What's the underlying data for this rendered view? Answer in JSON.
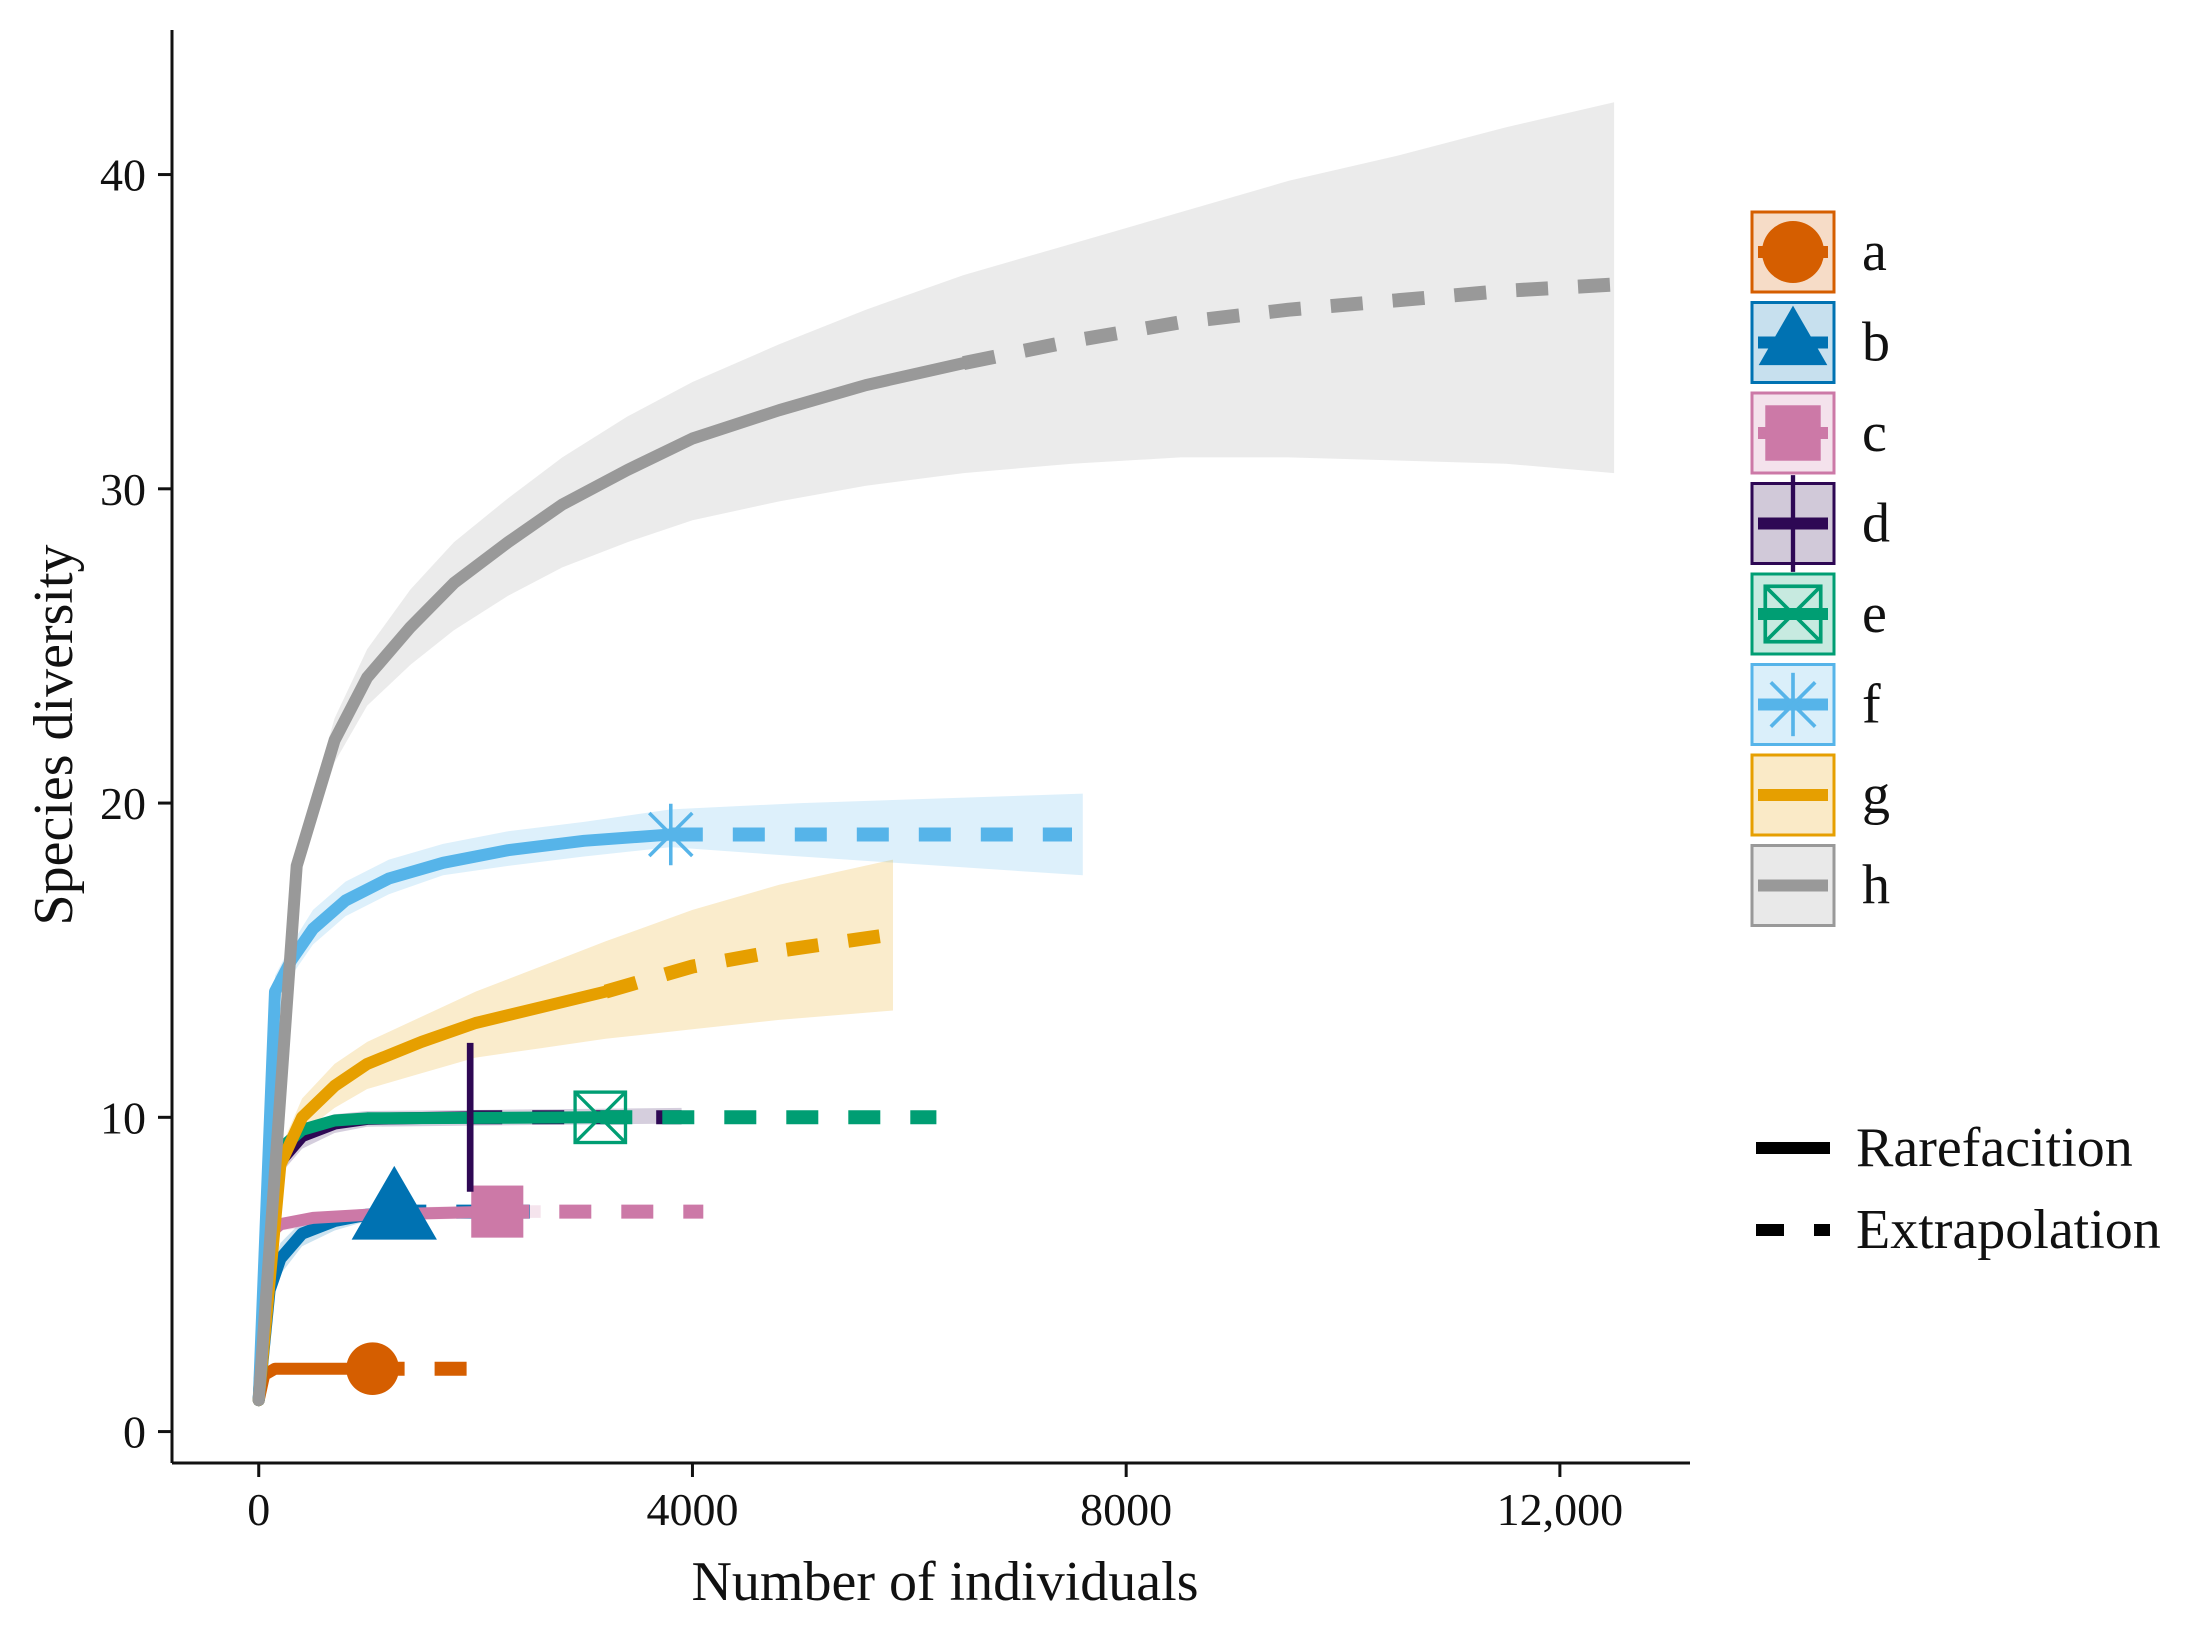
{
  "chart_data": {
    "type": "line",
    "title": "",
    "xlabel": "Number of individuals",
    "ylabel": "Species diversity",
    "xlim": [
      -800,
      13200
    ],
    "ylim": [
      -1,
      44.6
    ],
    "xticks": [
      0,
      4000,
      8000,
      12000
    ],
    "xtick_labels": [
      "0",
      "4000",
      "8000",
      "12,000"
    ],
    "yticks": [
      0,
      10,
      20,
      30,
      40
    ],
    "ytick_labels": [
      "0",
      "10",
      "20",
      "30",
      "40"
    ],
    "grid": false,
    "legend_position": "right",
    "line_types": [
      {
        "name": "Rarefacition",
        "style": "solid"
      },
      {
        "name": "Extrapolation",
        "style": "dashed"
      }
    ],
    "series": [
      {
        "name": "a",
        "color": "#D55E00",
        "marker": "circle",
        "observed": [
          1050,
          2
        ],
        "rarefaction": [
          [
            0,
            1
          ],
          [
            50,
            1.8
          ],
          [
            150,
            2
          ],
          [
            1050,
            2
          ]
        ],
        "extrapolation": [
          [
            1050,
            2
          ],
          [
            1950,
            2
          ]
        ],
        "band": null
      },
      {
        "name": "b",
        "color": "#0072B2",
        "marker": "triangle",
        "observed": [
          1250,
          7
        ],
        "rarefaction": [
          [
            0,
            1
          ],
          [
            100,
            4.5
          ],
          [
            200,
            5.5
          ],
          [
            400,
            6.3
          ],
          [
            700,
            6.7
          ],
          [
            1000,
            6.9
          ],
          [
            1250,
            7
          ]
        ],
        "extrapolation": [
          [
            1250,
            7
          ],
          [
            2500,
            7
          ]
        ],
        "band": [
          [
            0,
            1,
            1
          ],
          [
            100,
            4,
            5
          ],
          [
            200,
            5,
            6
          ],
          [
            400,
            5.9,
            6.7
          ],
          [
            700,
            6.4,
            7
          ],
          [
            1000,
            6.7,
            7.1
          ],
          [
            2500,
            6.9,
            7.1
          ]
        ]
      },
      {
        "name": "c",
        "color": "#CC79A7",
        "marker": "square",
        "observed": [
          2200,
          7
        ],
        "rarefaction": [
          [
            0,
            1
          ],
          [
            100,
            6.3
          ],
          [
            200,
            6.6
          ],
          [
            500,
            6.8
          ],
          [
            1000,
            6.9
          ],
          [
            2200,
            7
          ]
        ],
        "extrapolation": [
          [
            2200,
            7
          ],
          [
            4100,
            7
          ]
        ],
        "band": [
          [
            0,
            1,
            1
          ],
          [
            100,
            6,
            6.6
          ],
          [
            200,
            6.4,
            6.8
          ],
          [
            1000,
            6.7,
            7.1
          ],
          [
            2200,
            6.8,
            7.2
          ],
          [
            2600,
            6.8,
            7.2
          ]
        ]
      },
      {
        "name": "d",
        "color": "#2E0854",
        "marker": "plus",
        "observed": [
          1950,
          10
        ],
        "rarefaction": [
          [
            0,
            1
          ],
          [
            100,
            7
          ],
          [
            200,
            8.6
          ],
          [
            400,
            9.4
          ],
          [
            700,
            9.8
          ],
          [
            1000,
            9.95
          ],
          [
            1950,
            10
          ]
        ],
        "extrapolation": [
          [
            1950,
            10
          ],
          [
            3900,
            10
          ]
        ],
        "band": [
          [
            0,
            1,
            1
          ],
          [
            100,
            6.5,
            7.5
          ],
          [
            200,
            8.2,
            9
          ],
          [
            400,
            9,
            9.8
          ],
          [
            700,
            9.5,
            10.1
          ],
          [
            1000,
            9.7,
            10.2
          ],
          [
            3900,
            9.8,
            10.3
          ]
        ]
      },
      {
        "name": "e",
        "color": "#009E73",
        "marker": "boxcross",
        "observed": [
          3150,
          10
        ],
        "rarefaction": [
          [
            0,
            1
          ],
          [
            100,
            7.5
          ],
          [
            200,
            9
          ],
          [
            400,
            9.6
          ],
          [
            700,
            9.9
          ],
          [
            1000,
            9.97
          ],
          [
            3150,
            10
          ]
        ],
        "extrapolation": [
          [
            3150,
            10
          ],
          [
            6250,
            10
          ]
        ],
        "band": null
      },
      {
        "name": "f",
        "color": "#56B4E9",
        "marker": "star",
        "observed": [
          3800,
          19
        ],
        "rarefaction": [
          [
            0,
            1
          ],
          [
            150,
            14
          ],
          [
            300,
            15
          ],
          [
            500,
            16
          ],
          [
            800,
            16.9
          ],
          [
            1200,
            17.6
          ],
          [
            1700,
            18.1
          ],
          [
            2300,
            18.5
          ],
          [
            3000,
            18.8
          ],
          [
            3800,
            19
          ]
        ],
        "extrapolation": [
          [
            3800,
            19
          ],
          [
            7500,
            19
          ]
        ],
        "band": [
          [
            0,
            1,
            1
          ],
          [
            150,
            13.5,
            14.5
          ],
          [
            300,
            14.5,
            15.5
          ],
          [
            500,
            15.5,
            16.6
          ],
          [
            800,
            16.4,
            17.5
          ],
          [
            1200,
            17.1,
            18.2
          ],
          [
            1700,
            17.7,
            18.7
          ],
          [
            2300,
            18,
            19.1
          ],
          [
            3000,
            18.3,
            19.4
          ],
          [
            3800,
            18.6,
            19.8
          ],
          [
            5000,
            18.3,
            20
          ],
          [
            7600,
            17.7,
            20.3
          ]
        ]
      },
      {
        "name": "g",
        "color": "#E69F00",
        "marker": "none",
        "observed": [
          3200,
          14
        ],
        "rarefaction": [
          [
            0,
            1
          ],
          [
            200,
            8.5
          ],
          [
            400,
            10
          ],
          [
            700,
            11
          ],
          [
            1000,
            11.7
          ],
          [
            1500,
            12.4
          ],
          [
            2000,
            13
          ],
          [
            2600,
            13.5
          ],
          [
            3200,
            14
          ]
        ],
        "extrapolation": [
          [
            3200,
            14
          ],
          [
            4000,
            14.8
          ],
          [
            4800,
            15.3
          ],
          [
            5800,
            15.8
          ]
        ],
        "band": [
          [
            0,
            1,
            1
          ],
          [
            200,
            8,
            9
          ],
          [
            400,
            9.5,
            10.6
          ],
          [
            700,
            10.3,
            11.7
          ],
          [
            1000,
            10.9,
            12.4
          ],
          [
            1500,
            11.4,
            13.2
          ],
          [
            2000,
            11.9,
            14
          ],
          [
            2600,
            12.2,
            14.8
          ],
          [
            3200,
            12.5,
            15.6
          ],
          [
            4000,
            12.8,
            16.6
          ],
          [
            4800,
            13.1,
            17.4
          ],
          [
            5850,
            13.4,
            18.2
          ]
        ]
      },
      {
        "name": "h",
        "color": "#999999",
        "marker": "none",
        "observed": [
          6500,
          34
        ],
        "rarefaction": [
          [
            0,
            1
          ],
          [
            350,
            18
          ],
          [
            700,
            22
          ],
          [
            1000,
            24
          ],
          [
            1400,
            25.6
          ],
          [
            1800,
            27
          ],
          [
            2300,
            28.3
          ],
          [
            2800,
            29.5
          ],
          [
            3400,
            30.6
          ],
          [
            4000,
            31.6
          ],
          [
            4800,
            32.5
          ],
          [
            5600,
            33.3
          ],
          [
            6500,
            34
          ]
        ],
        "extrapolation": [
          [
            6500,
            34
          ],
          [
            7500,
            34.7
          ],
          [
            8500,
            35.3
          ],
          [
            9500,
            35.7
          ],
          [
            10500,
            36
          ],
          [
            11500,
            36.3
          ],
          [
            12500,
            36.5
          ]
        ],
        "band": [
          [
            0,
            1,
            1
          ],
          [
            350,
            17.5,
            18.5
          ],
          [
            700,
            21.3,
            22.7
          ],
          [
            1000,
            23.1,
            24.9
          ],
          [
            1400,
            24.4,
            26.8
          ],
          [
            1800,
            25.5,
            28.3
          ],
          [
            2300,
            26.6,
            29.7
          ],
          [
            2800,
            27.5,
            31
          ],
          [
            3400,
            28.3,
            32.3
          ],
          [
            4000,
            29,
            33.4
          ],
          [
            4800,
            29.6,
            34.6
          ],
          [
            5600,
            30.1,
            35.7
          ],
          [
            6500,
            30.5,
            36.8
          ],
          [
            7500,
            30.8,
            37.8
          ],
          [
            8500,
            31,
            38.8
          ],
          [
            9500,
            31,
            39.8
          ],
          [
            10500,
            30.9,
            40.6
          ],
          [
            11500,
            30.8,
            41.5
          ],
          [
            12500,
            30.5,
            42.3
          ]
        ]
      }
    ]
  }
}
